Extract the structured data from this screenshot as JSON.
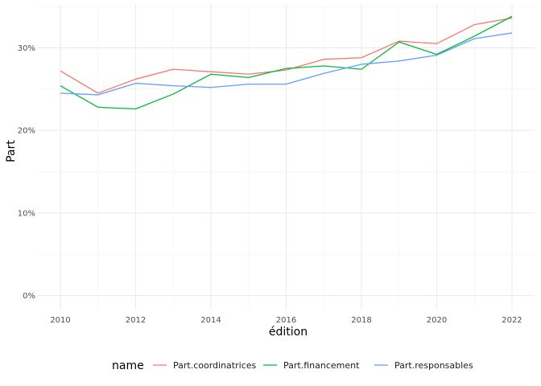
{
  "chart_data": {
    "type": "line",
    "xlabel": "édition",
    "ylabel": "Part",
    "xlim": [
      2009.4,
      2022.6
    ],
    "ylim": [
      -0.017,
      0.352
    ],
    "x_ticks": [
      2010,
      2012,
      2014,
      2016,
      2018,
      2020,
      2022
    ],
    "y_ticks": [
      0,
      0.1,
      0.2,
      0.3
    ],
    "y_tick_labels": [
      "0%",
      "10%",
      "20%",
      "30%"
    ],
    "grid": true,
    "legend": {
      "title": "name",
      "position": "bottom"
    },
    "x": [
      2010,
      2011,
      2012,
      2013,
      2014,
      2015,
      2016,
      2017,
      2018,
      2019,
      2020,
      2021,
      2022
    ],
    "series": [
      {
        "name": "Part.coordinatrices",
        "color": "#F8766D",
        "values": [
          0.272,
          0.245,
          0.262,
          0.274,
          0.271,
          0.268,
          0.273,
          0.286,
          0.288,
          0.308,
          0.305,
          0.328,
          0.336
        ]
      },
      {
        "name": "Part.financement",
        "color": "#00BA38",
        "values": [
          0.254,
          0.228,
          0.226,
          0.244,
          0.268,
          0.264,
          0.275,
          0.278,
          0.274,
          0.307,
          0.292,
          0.314,
          0.338
        ]
      },
      {
        "name": "Part.responsables",
        "color": "#619CFF",
        "values": [
          0.245,
          0.243,
          0.257,
          0.254,
          0.252,
          0.256,
          0.256,
          0.269,
          0.28,
          0.284,
          0.291,
          0.311,
          0.318
        ]
      }
    ]
  }
}
